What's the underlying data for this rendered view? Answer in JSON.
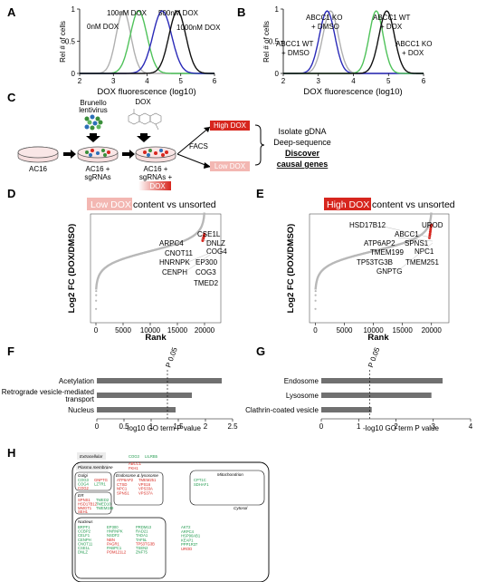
{
  "panels": {
    "A": {
      "label": "A",
      "chart_data": {
        "type": "line",
        "xlabel": "DOX fluorescence (log10)",
        "ylabel": "Rel # of cells",
        "xlim": [
          2,
          6
        ],
        "ylim": [
          0,
          1
        ],
        "xticks": [
          "2",
          "3",
          "4",
          "5",
          "6"
        ],
        "yticks": [
          "0",
          "0.5",
          "1"
        ],
        "series": [
          {
            "name": "0nM DOX",
            "color": "#b0b0b0",
            "mu": 3.3,
            "sigma": 0.22
          },
          {
            "name": "100nM DOX",
            "color": "#4fc25a",
            "mu": 3.75,
            "sigma": 0.25
          },
          {
            "name": "500nM DOX",
            "color": "#2a2ab8",
            "mu": 4.45,
            "sigma": 0.28
          },
          {
            "name": "1000nM DOX",
            "color": "#111111",
            "mu": 4.9,
            "sigma": 0.25
          }
        ]
      }
    },
    "B": {
      "label": "B",
      "chart_data": {
        "type": "line",
        "xlabel": "DOX fluorescence (log10)",
        "ylabel": "Rel # of cells",
        "xlim": [
          2,
          6
        ],
        "ylim": [
          0,
          1
        ],
        "xticks": [
          "2",
          "3",
          "4",
          "5",
          "6"
        ],
        "yticks": [
          "0",
          "0.5",
          "1"
        ],
        "series": [
          {
            "name": "ABCC1 WT + DMSO",
            "color": "#b0b0b0",
            "mu": 3.35,
            "sigma": 0.22
          },
          {
            "name": "ABCC1 KO + DMSO",
            "color": "#2a2ab8",
            "mu": 3.25,
            "sigma": 0.22
          },
          {
            "name": "ABCC1 WT + DOX",
            "color": "#4fc25a",
            "mu": 4.65,
            "sigma": 0.2
          },
          {
            "name": "ABCC1 KO + DOX",
            "color": "#111111",
            "mu": 4.95,
            "sigma": 0.22
          }
        ],
        "annotations": [
          "ABCC1 KO",
          "+ DMSO",
          "ABCC1 WT",
          "+ DMSO",
          "ABCC1 WT",
          "+ DOX",
          "ABCC1 KO",
          "+ DOX"
        ]
      }
    },
    "C": {
      "label": "C",
      "lentivirus": [
        "Brunello",
        "lentivirus"
      ],
      "dox": "DOX",
      "ac16": "AC16",
      "ac16_sgrnas": [
        "AC16 +",
        "sgRNAs"
      ],
      "ac16_sgrnas_dox": [
        "AC16 +",
        "sgRNAs +"
      ],
      "dox_tag": "DOX",
      "facs": "FACS",
      "high_dox": "High DOX",
      "low_dox": "Low DOX",
      "steps": [
        "Isolate gDNA",
        "Deep-sequence",
        "Discover",
        "causal genes"
      ]
    },
    "D": {
      "label": "D",
      "title_tag": "Low DOX",
      "title_rest": " content vs unsorted",
      "chart_data": {
        "type": "scatter",
        "xlabel": "Rank",
        "ylabel": "Log2 FC (DOX/DMSO)",
        "xlim": [
          -1000,
          23000
        ],
        "ylim": [
          -2.6,
          1.35
        ],
        "xticks": [
          "0",
          "5000",
          "10000",
          "15000",
          "20000"
        ],
        "n_points": 20000,
        "highlight_color": "#d7261e",
        "labels": [
          "CSE1L",
          "DNLZ",
          "ARPC4",
          "COG4",
          "CNOT11",
          "HNRNPK",
          "EP300",
          "CENPH",
          "COG3",
          "TMED2"
        ]
      }
    },
    "E": {
      "label": "E",
      "title_tag": "High DOX",
      "title_rest": " content vs unsorted",
      "chart_data": {
        "type": "scatter",
        "xlabel": "Rank",
        "ylabel": "Log2 FC (DOX/DMSO)",
        "xlim": [
          -1000,
          23000
        ],
        "ylim": [
          -2.6,
          1.35
        ],
        "xticks": [
          "0",
          "5000",
          "10000",
          "15000",
          "20000"
        ],
        "n_points": 20000,
        "highlight_color": "#d7261e",
        "labels": [
          "HSD17B12",
          "UROD",
          "ABCC1",
          "ATP6AP2",
          "SPNS1",
          "NPC1",
          "TMEM199",
          "TP53TG3B",
          "TMEM251",
          "GNPTG"
        ]
      }
    },
    "F": {
      "label": "F",
      "chart_data": {
        "type": "bar",
        "orientation": "horizontal",
        "categories": [
          "Acetylation",
          "Retrograde vesicle-mediated transport",
          "Nucleus"
        ],
        "category_lines": [
          [
            "Acetylation"
          ],
          [
            "Retrograde vesicle-mediated",
            "transport"
          ],
          [
            "Nucleus"
          ]
        ],
        "values": [
          2.3,
          1.75,
          1.45
        ],
        "xlim": [
          0,
          2.5
        ],
        "xticks": [
          "0",
          "0.5",
          "1",
          "1.5",
          "2",
          "2.5"
        ],
        "xlabel": "-log10 GO term P value",
        "threshold": 1.3,
        "threshold_label": "P 0.05",
        "bar_color": "#707070"
      }
    },
    "G": {
      "label": "G",
      "chart_data": {
        "type": "bar",
        "orientation": "horizontal",
        "categories": [
          "Endosome",
          "Lysosome",
          "Clathrin-coated vesicle"
        ],
        "category_lines": [
          [
            "Endosome"
          ],
          [
            "Lysosome"
          ],
          [
            "Clathrin-coated vesicle"
          ]
        ],
        "values": [
          3.25,
          2.95,
          1.35
        ],
        "xlim": [
          0,
          4
        ],
        "xticks": [
          "0",
          "1",
          "2",
          "3",
          "4"
        ],
        "xlabel": "-log10 GO term P value",
        "threshold": 1.3,
        "threshold_label": "P 0.05",
        "bar_color": "#707070"
      }
    },
    "H": {
      "label": "H",
      "extracellular": {
        "title": "Extracellular",
        "genes": [
          {
            "t": "COG3",
            "c": "grn"
          },
          {
            "t": "LILRB5",
            "c": "grn"
          }
        ]
      },
      "plasma": {
        "title": "Plasma membrane",
        "genes": [
          {
            "t": "ABCC1",
            "c": "red"
          },
          {
            "t": "FKH1",
            "c": "red"
          }
        ]
      },
      "golgi": {
        "title": "Golgi",
        "col1": [
          {
            "t": "COG3",
            "c": "grn"
          },
          {
            "t": "COG4",
            "c": "grn"
          },
          {
            "t": "COG2",
            "c": "red"
          }
        ],
        "col2": [
          {
            "t": "GNPTG",
            "c": "red"
          },
          {
            "t": "LZTR1",
            "c": "grn"
          }
        ]
      },
      "er": {
        "title": "ER",
        "col1": [
          {
            "t": "SPNS1",
            "c": "red"
          },
          {
            "t": "HSD17B12",
            "c": "red"
          },
          {
            "t": "MMGT1",
            "c": "red"
          },
          {
            "t": "SEH1",
            "c": "red"
          }
        ],
        "col2": [
          {
            "t": "TMED2",
            "c": "grn"
          },
          {
            "t": "TMED10",
            "c": "grn"
          },
          {
            "t": "TMEM199",
            "c": "grn"
          }
        ]
      },
      "endosome": {
        "title": "Endosome & lysosome",
        "col1": [
          {
            "t": "ATP6AP2",
            "c": "red"
          },
          {
            "t": "CTSD",
            "c": "red"
          },
          {
            "t": "NPC1",
            "c": "red"
          },
          {
            "t": "SPNS1",
            "c": "red"
          }
        ],
        "col2": [
          {
            "t": "TMEM251",
            "c": "red"
          },
          {
            "t": "VPS16",
            "c": "red"
          },
          {
            "t": "VPS33A",
            "c": "red"
          },
          {
            "t": "VPS37A",
            "c": "red"
          }
        ]
      },
      "mito": {
        "title": "Mitochondrion",
        "genes": [
          {
            "t": "CPT1C",
            "c": "grn"
          },
          {
            "t": "SDHAF1",
            "c": "grn"
          }
        ]
      },
      "nucleus": {
        "title": "Nucleus",
        "col1": [
          {
            "t": "BRPF1",
            "c": "grn"
          },
          {
            "t": "CCBP2",
            "c": "grn"
          },
          {
            "t": "CELF1",
            "c": "grn"
          },
          {
            "t": "CENPH",
            "c": "grn"
          },
          {
            "t": "CNOT11",
            "c": "grn"
          },
          {
            "t": "CSE1L",
            "c": "grn"
          },
          {
            "t": "DNLZ",
            "c": "grn"
          }
        ],
        "col2": [
          {
            "t": "EP300",
            "c": "grn"
          },
          {
            "t": "HNRNPK",
            "c": "grn"
          },
          {
            "t": "NSDF2",
            "c": "grn"
          },
          {
            "t": "NBN",
            "c": "red"
          },
          {
            "t": "PAGR1",
            "c": "red"
          },
          {
            "t": "PABPC1",
            "c": "grn"
          },
          {
            "t": "POM121L2",
            "c": "red"
          }
        ],
        "col3": [
          {
            "t": "PRDM13",
            "c": "grn"
          },
          {
            "t": "RAD21",
            "c": "grn"
          },
          {
            "t": "TADA1",
            "c": "grn"
          },
          {
            "t": "TAF5L",
            "c": "grn"
          },
          {
            "t": "TP53TG3B",
            "c": "red"
          },
          {
            "t": "TSEN2",
            "c": "grn"
          },
          {
            "t": "ZNF75",
            "c": "grn"
          }
        ]
      },
      "cytosol": {
        "title": "Cytosol",
        "genes": [
          {
            "t": "AKT2",
            "c": "grn"
          },
          {
            "t": "ARPC4",
            "c": "grn"
          },
          {
            "t": "HSP90AB1",
            "c": "grn"
          },
          {
            "t": "KEAP1",
            "c": "grn"
          },
          {
            "t": "PPP1R37",
            "c": "grn"
          },
          {
            "t": "UROD",
            "c": "red"
          }
        ]
      }
    }
  }
}
